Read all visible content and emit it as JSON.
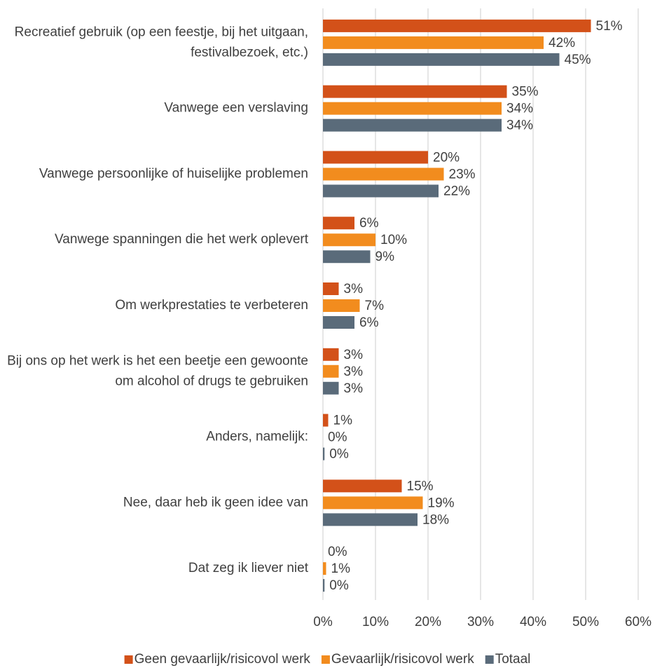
{
  "chart_data": {
    "type": "bar",
    "orientation": "horizontal",
    "categories": [
      "Recreatief gebruik (op een feestje, bij het uitgaan, festivalbezoek, etc.)",
      "Vanwege een verslaving",
      "Vanwege persoonlijke of huiselijke problemen",
      "Vanwege spanningen die het werk oplevert",
      "Om werkprestaties te verbeteren",
      "Bij ons op het werk is het een beetje een gewoonte om alcohol of drugs te gebruiken",
      "Anders, namelijk:",
      "Nee, daar heb ik geen idee van",
      "Dat zeg ik liever niet"
    ],
    "series": [
      {
        "name": "Geen gevaarlijk/risicovol werk",
        "color": "#d35119",
        "values": [
          51,
          35,
          20,
          6,
          3,
          3,
          1,
          15,
          0
        ],
        "value_labels": [
          "51%",
          "35%",
          "20%",
          "6%",
          "3%",
          "3%",
          "1%",
          "15%",
          "0%"
        ]
      },
      {
        "name": "Gevaarlijk/risicovol werk",
        "color": "#f28c1e",
        "values": [
          42,
          34,
          23,
          10,
          7,
          3,
          0,
          19,
          0.6
        ],
        "value_labels": [
          "42%",
          "34%",
          "23%",
          "10%",
          "7%",
          "3%",
          "0%",
          "19%",
          "1%"
        ]
      },
      {
        "name": "Totaal",
        "color": "#5a6b7a",
        "values": [
          45,
          34,
          22,
          9,
          6,
          3,
          0.3,
          18,
          0.3
        ],
        "value_labels": [
          "45%",
          "34%",
          "22%",
          "9%",
          "6%",
          "3%",
          "0%",
          "18%",
          "0%"
        ]
      }
    ],
    "xlim": [
      0,
      60
    ],
    "xticks": [
      {
        "value": 0,
        "label": "0%"
      },
      {
        "value": 10,
        "label": "10%"
      },
      {
        "value": 20,
        "label": "20%"
      },
      {
        "value": 30,
        "label": "30%"
      },
      {
        "value": 40,
        "label": "40%"
      },
      {
        "value": 50,
        "label": "50%"
      },
      {
        "value": 60,
        "label": "60%"
      }
    ],
    "grid": true,
    "legend": "bottom"
  }
}
